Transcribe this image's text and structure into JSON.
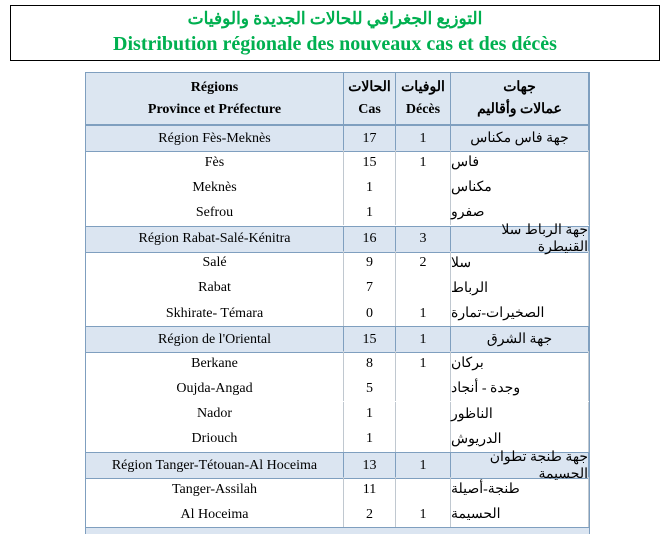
{
  "header": {
    "title_ar": "التوزيع الجغرافي للحالات الجديدة والوفيات",
    "title_fr": "Distribution régionale des nouveaux cas et des décès"
  },
  "table": {
    "columns": [
      [
        "Régions",
        "Province et Préfecture"
      ],
      [
        "الحالات",
        "Cas"
      ],
      [
        "الوفيات",
        "Décès"
      ],
      [
        "جهات",
        "عمالات وأقاليم"
      ]
    ],
    "regions": [
      {
        "cells": [
          "Région Fès-Meknès",
          17,
          1,
          "جهة فاس مكناس"
        ],
        "rows": [
          [
            "Fès",
            15,
            1,
            "فاس"
          ],
          [
            "Meknès",
            1,
            null,
            "مكناس"
          ],
          [
            "Sefrou",
            1,
            null,
            "صفرو"
          ]
        ]
      },
      {
        "cells": [
          "Région Rabat-Salé-Kénitra",
          16,
          3,
          "جهة الرباط سلا القنيطرة"
        ],
        "rows": [
          [
            "Salé",
            9,
            2,
            "سلا"
          ],
          [
            "Rabat",
            7,
            null,
            "الرباط"
          ],
          [
            "Skhirate- Témara",
            0,
            1,
            "الصخيرات-تمارة"
          ]
        ]
      },
      {
        "cells": [
          "Région de l'Oriental",
          15,
          1,
          "جهة الشرق"
        ],
        "rows": [
          [
            "Berkane",
            8,
            1,
            "بركان"
          ],
          [
            "Oujda-Angad",
            5,
            null,
            "وجدة - أنجاد"
          ],
          [
            "Nador",
            1,
            null,
            "الناظور"
          ],
          [
            "Driouch",
            1,
            null,
            "الدريوش"
          ]
        ]
      },
      {
        "cells": [
          "Région Tanger-Tétouan-Al Hoceima",
          13,
          1,
          "جهة طنجة تطوان الحسيمة"
        ],
        "rows": [
          [
            "Tanger-Assilah",
            11,
            null,
            "طنجة-أصيلة"
          ],
          [
            "Al Hoceima",
            2,
            1,
            "الحسيمة"
          ]
        ]
      }
    ]
  }
}
